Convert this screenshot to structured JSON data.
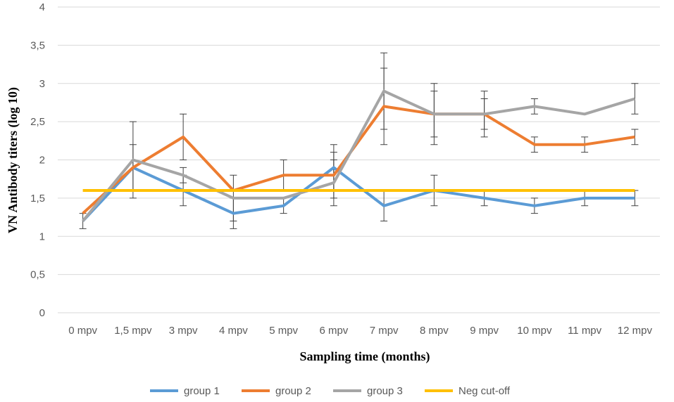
{
  "chart_data": {
    "type": "line",
    "title": "",
    "xlabel": "Sampling time (months)",
    "ylabel": "VN  Antibody titers (log 10)",
    "categories": [
      "0 mpv",
      "1,5 mpv",
      "3 mpv",
      "4 mpv",
      "5 mpv",
      "6 mpv",
      "7 mpv",
      "8 mpv",
      "9 mpv",
      "10 mpv",
      "11 mpv",
      "12 mpv"
    ],
    "ylim": [
      0,
      4
    ],
    "yticks": [
      0,
      0.5,
      1,
      1.5,
      2,
      2.5,
      3,
      3.5,
      4
    ],
    "ytick_labels": [
      "0",
      "0,5",
      "1",
      "1,5",
      "2",
      "2,5",
      "3",
      "3,5",
      "4"
    ],
    "grid": true,
    "legend_position": "bottom",
    "series": [
      {
        "name": "group 1",
        "color": "#5B9BD5",
        "values": [
          1.2,
          1.9,
          1.6,
          1.3,
          1.4,
          1.9,
          1.4,
          1.6,
          1.5,
          1.4,
          1.5,
          1.5
        ],
        "errors": [
          0.1,
          0.3,
          0.2,
          0.2,
          0.1,
          0.3,
          0.2,
          0.2,
          0.1,
          0.1,
          0.1,
          0.1
        ]
      },
      {
        "name": "group 2",
        "color": "#ED7D31",
        "values": [
          1.3,
          1.9,
          2.3,
          1.6,
          1.8,
          1.8,
          2.7,
          2.6,
          2.6,
          2.2,
          2.2,
          2.3
        ],
        "errors": [
          0.0,
          0.0,
          0.3,
          0.0,
          0.2,
          0.3,
          0.5,
          0.4,
          0.3,
          0.1,
          0.1,
          0.1
        ]
      },
      {
        "name": "group 3",
        "color": "#A5A5A5",
        "values": [
          1.2,
          2.0,
          1.8,
          1.5,
          1.5,
          1.7,
          2.9,
          2.6,
          2.6,
          2.7,
          2.6,
          2.8
        ],
        "errors": [
          0.0,
          0.5,
          0.1,
          0.3,
          0.0,
          0.3,
          0.5,
          0.3,
          0.2,
          0.1,
          0.0,
          0.2
        ]
      },
      {
        "name": "Neg cut-off",
        "color": "#FFC000",
        "values": [
          1.6,
          1.6,
          1.6,
          1.6,
          1.6,
          1.6,
          1.6,
          1.6,
          1.6,
          1.6,
          1.6,
          1.6
        ],
        "errors": null
      }
    ]
  }
}
